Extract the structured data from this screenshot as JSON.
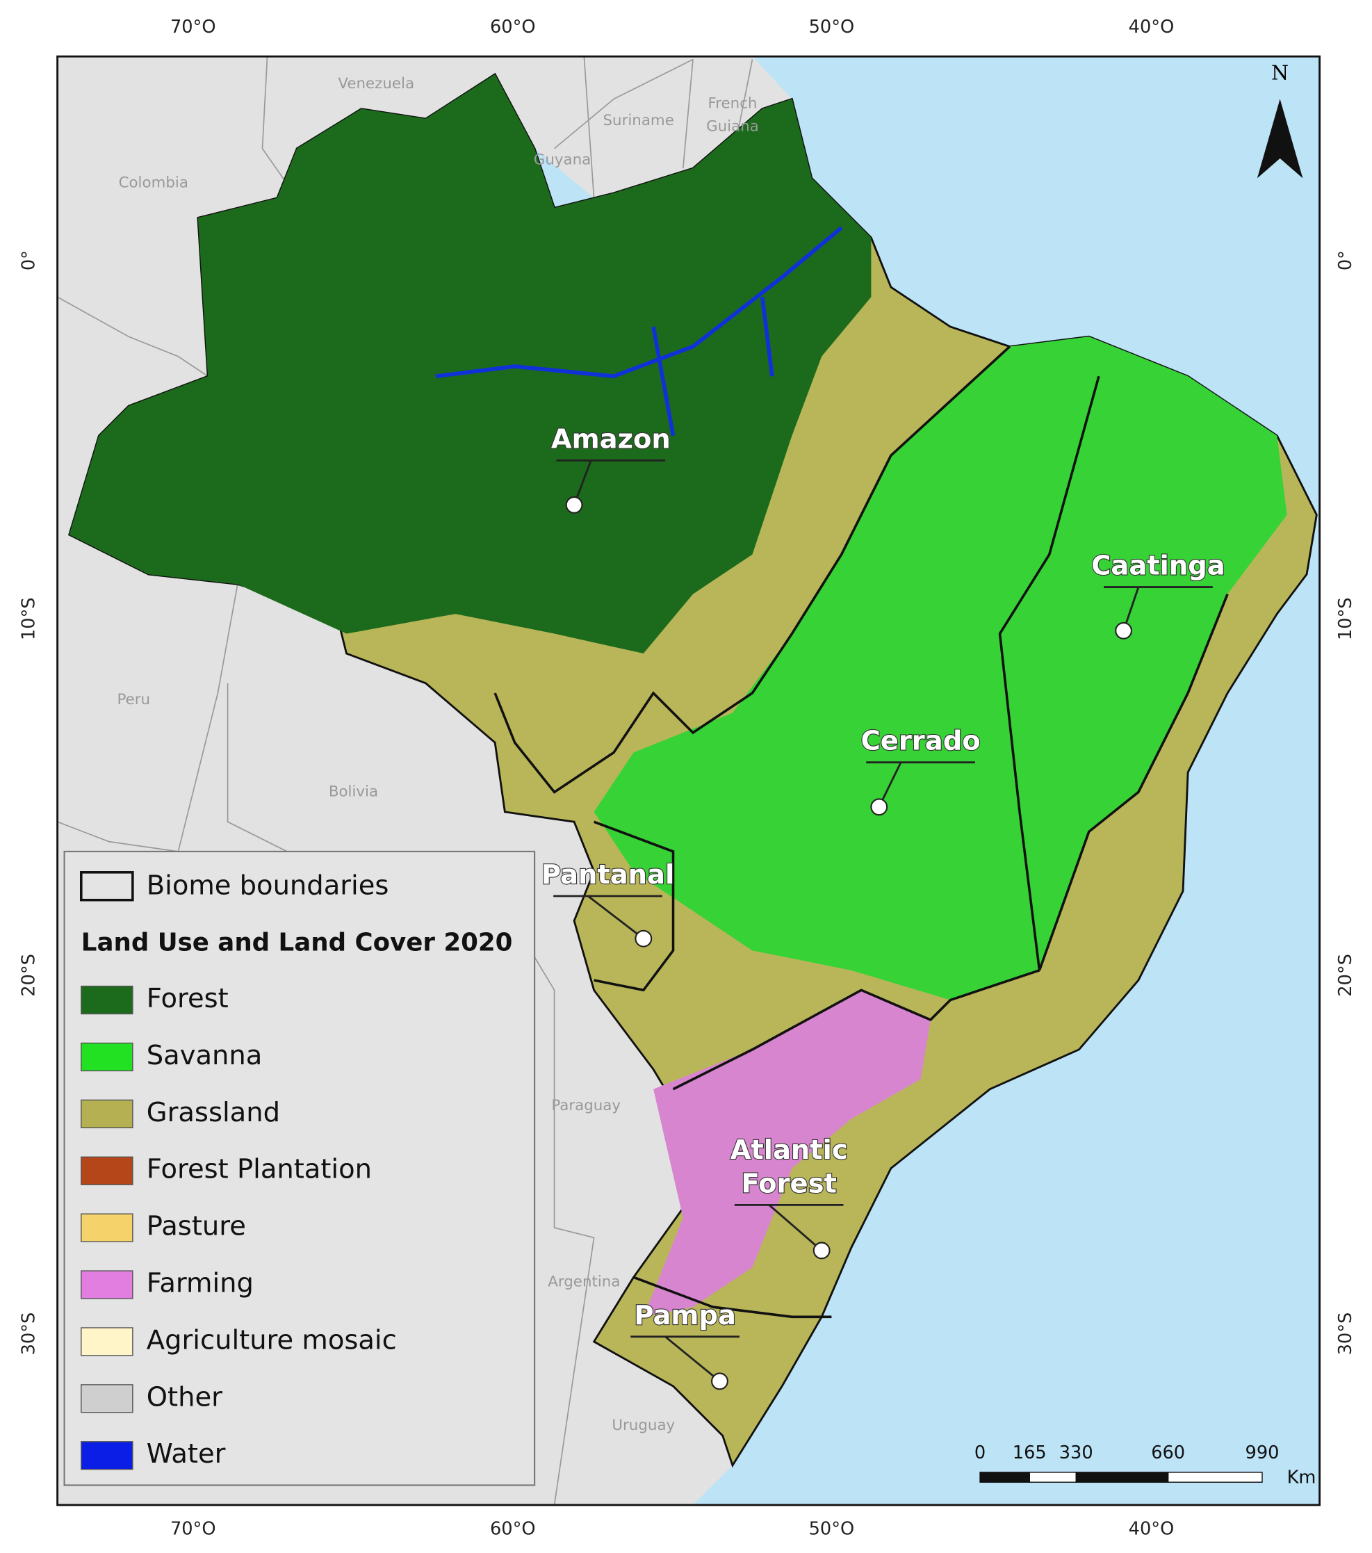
{
  "axes": {
    "top": [
      "70°O",
      "60°O",
      "50°O",
      "40°O"
    ],
    "bottom": [
      "70°O",
      "60°O",
      "50°O",
      "40°O"
    ],
    "left": [
      "0°",
      "10°S",
      "20°S",
      "30°S"
    ],
    "right": [
      "0°",
      "10°S",
      "20°S",
      "30°S"
    ]
  },
  "countries": [
    {
      "lines": [
        "Venezuela"
      ]
    },
    {
      "lines": [
        "Suriname"
      ]
    },
    {
      "lines": [
        "French",
        "Guiana"
      ]
    },
    {
      "lines": [
        "Guyana"
      ]
    },
    {
      "lines": [
        "Colombia"
      ]
    },
    {
      "lines": [
        "Peru"
      ]
    },
    {
      "lines": [
        "Bolivia"
      ]
    },
    {
      "lines": [
        "Paraguay"
      ]
    },
    {
      "lines": [
        "Argentina"
      ]
    },
    {
      "lines": [
        "Uruguay"
      ]
    }
  ],
  "biomes": [
    {
      "lines": [
        "Amazon"
      ]
    },
    {
      "lines": [
        "Caatinga"
      ]
    },
    {
      "lines": [
        "Cerrado"
      ]
    },
    {
      "lines": [
        "Pantanal"
      ]
    },
    {
      "lines": [
        "Atlantic",
        "Forest"
      ]
    },
    {
      "lines": [
        "Pampa"
      ]
    }
  ],
  "legend": {
    "boundary": "Biome boundaries",
    "title": "Land Use and Land Cover 2020",
    "items": [
      {
        "label": "Forest",
        "color": "#1c6b1c"
      },
      {
        "label": "Savanna",
        "color": "#22e022"
      },
      {
        "label": "Grassland",
        "color": "#b5b052"
      },
      {
        "label": "Forest Plantation",
        "color": "#b5461a"
      },
      {
        "label": "Pasture",
        "color": "#f5d36a"
      },
      {
        "label": "Farming",
        "color": "#e27ee0"
      },
      {
        "label": "Agriculture mosaic",
        "color": "#fff5c8"
      },
      {
        "label": "Other",
        "color": "#cfcfcf"
      },
      {
        "label": "Water",
        "color": "#0a1ee6"
      }
    ]
  },
  "scale_bar": {
    "labels": [
      0,
      165,
      330,
      660,
      990
    ],
    "unit": "Km"
  },
  "north": "N"
}
